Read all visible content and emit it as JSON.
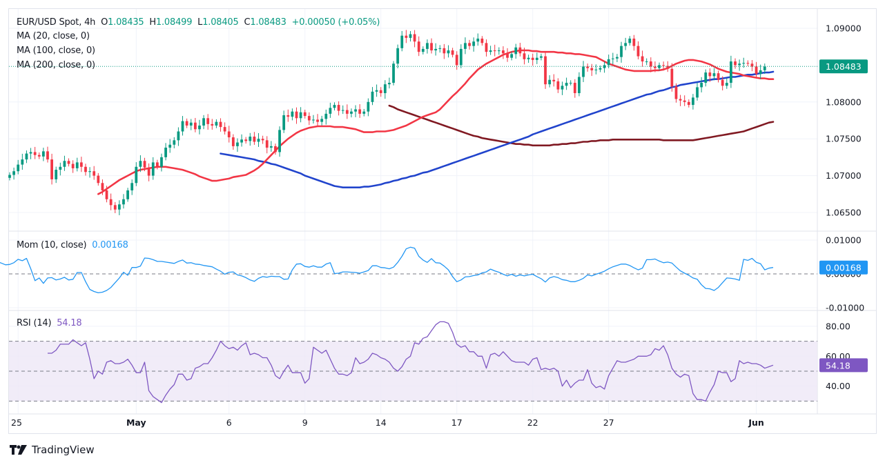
{
  "header": {
    "symbol": "EUR/USD Spot, 4h",
    "open_label": "O",
    "open": "1.08435",
    "high_label": "H",
    "high": "1.08499",
    "low_label": "L",
    "low": "1.08405",
    "close_label": "C",
    "close": "1.08483",
    "change": "+0.00050 (+0.05%)"
  },
  "indicators": {
    "ma20": "MA (20, close, 0)",
    "ma100": "MA (100, close, 0)",
    "ma200": "MA (200, close, 0)",
    "mom_label": "Mom (10, close)",
    "mom_value": "0.00168",
    "rsi_label": "RSI (14)",
    "rsi_value": "54.18"
  },
  "colors": {
    "up": "#089981",
    "down": "#f23645",
    "ma20": "#f23645",
    "ma100": "#2144cc",
    "ma200": "#801922",
    "mom": "#2196f3",
    "rsi": "#7e57c2",
    "rsi_band": "#ede7f6",
    "price_badge": "#089981"
  },
  "branding": {
    "name": "TradingView"
  },
  "chart_data": [
    {
      "type": "candlestick",
      "title": "EUR/USD Spot, 4h",
      "ylim": [
        1.0635,
        1.0915
      ],
      "yticks": [
        "1.09000",
        "1.08000",
        "1.07500",
        "1.07000",
        "1.06500"
      ],
      "ytick_values": [
        1.09,
        1.08,
        1.075,
        1.07,
        1.065
      ],
      "last_price_label": "1.08483",
      "last_price": 1.08483,
      "xticks": [
        {
          "label": "25",
          "index": 2,
          "bold": false
        },
        {
          "label": "May",
          "index": 30,
          "bold": true
        },
        {
          "label": "6",
          "index": 52,
          "bold": false
        },
        {
          "label": "9",
          "index": 70,
          "bold": false
        },
        {
          "label": "14",
          "index": 88,
          "bold": false
        },
        {
          "label": "17",
          "index": 106,
          "bold": false
        },
        {
          "label": "22",
          "index": 124,
          "bold": false
        },
        {
          "label": "27",
          "index": 142,
          "bold": false
        },
        {
          "label": "Jun",
          "index": 177,
          "bold": true
        }
      ],
      "n": 182,
      "closes": [
        1.0701,
        1.0706,
        1.0715,
        1.0722,
        1.073,
        1.0732,
        1.0728,
        1.0726,
        1.0733,
        1.0722,
        1.0695,
        1.0708,
        1.0712,
        1.072,
        1.0716,
        1.071,
        1.0718,
        1.0712,
        1.0705,
        1.0706,
        1.07,
        1.069,
        1.068,
        1.0668,
        1.066,
        1.0654,
        1.0661,
        1.0668,
        1.068,
        1.069,
        1.0712,
        1.072,
        1.0711,
        1.07,
        1.0718,
        1.0712,
        1.0725,
        1.0738,
        1.0742,
        1.0748,
        1.076,
        1.0774,
        1.0768,
        1.0772,
        1.0763,
        1.0768,
        1.0778,
        1.077,
        1.0768,
        1.0773,
        1.0766,
        1.076,
        1.0752,
        1.074,
        1.0745,
        1.0749,
        1.0747,
        1.0753,
        1.0746,
        1.075,
        1.0748,
        1.0738,
        1.074,
        1.0732,
        1.0762,
        1.0782,
        1.078,
        1.0787,
        1.0778,
        1.0786,
        1.0781,
        1.0775,
        1.0776,
        1.0773,
        1.0777,
        1.0784,
        1.0792,
        1.0796,
        1.0788,
        1.0789,
        1.0784,
        1.0787,
        1.079,
        1.0784,
        1.0787,
        1.08,
        1.0814,
        1.0816,
        1.0812,
        1.0824,
        1.0826,
        1.0852,
        1.0873,
        1.089,
        1.0887,
        1.0892,
        1.0882,
        1.0868,
        1.0872,
        1.088,
        1.087,
        1.0872,
        1.0873,
        1.0866,
        1.087,
        1.0864,
        1.085,
        1.0872,
        1.088,
        1.0876,
        1.0882,
        1.0886,
        1.088,
        1.0868,
        1.087,
        1.0869,
        1.087,
        1.0866,
        1.086,
        1.0865,
        1.0874,
        1.0866,
        1.0858,
        1.086,
        1.0857,
        1.086,
        1.0862,
        1.0824,
        1.083,
        1.0828,
        1.0817,
        1.0822,
        1.0826,
        1.0826,
        1.0812,
        1.0834,
        1.0848,
        1.0846,
        1.0843,
        1.0844,
        1.0846,
        1.085,
        1.0858,
        1.0859,
        1.0861,
        1.0876,
        1.088,
        1.0886,
        1.0876,
        1.0862,
        1.0855,
        1.0855,
        1.0848,
        1.0846,
        1.085,
        1.0849,
        1.0845,
        1.0821,
        1.0804,
        1.0802,
        1.08,
        1.0796,
        1.0806,
        1.082,
        1.0826,
        1.084,
        1.0835,
        1.0839,
        1.083,
        1.0822,
        1.0826,
        1.0855,
        1.085,
        1.0852,
        1.0853,
        1.0852,
        1.0848,
        1.0838,
        1.0843,
        1.0848
      ],
      "series": [
        {
          "name": "MA (20, close, 0)",
          "color": "#f23645",
          "values": [
            1.0675,
            1.0678,
            1.0682,
            1.0686,
            1.069,
            1.0694,
            1.0697,
            1.07,
            1.0703,
            1.0706,
            1.0708,
            1.0709,
            1.071,
            1.0711,
            1.0712,
            1.0712,
            1.0712,
            1.0711,
            1.071,
            1.0709,
            1.0708,
            1.0706,
            1.0704,
            1.0702,
            1.0699,
            1.0697,
            1.0695,
            1.0693,
            1.0693,
            1.0694,
            1.0695,
            1.0696,
            1.0698,
            1.0699,
            1.07,
            1.0701,
            1.0704,
            1.0707,
            1.0711,
            1.0716,
            1.0722,
            1.0728,
            1.0734,
            1.074,
            1.0745,
            1.075,
            1.0754,
            1.0758,
            1.0761,
            1.0763,
            1.0765,
            1.0766,
            1.0767,
            1.0767,
            1.0767,
            1.0767,
            1.0766,
            1.0766,
            1.0766,
            1.0765,
            1.0764,
            1.0763,
            1.0761,
            1.0759,
            1.0759,
            1.0759,
            1.076,
            1.076,
            1.076,
            1.0761,
            1.0762,
            1.0764,
            1.0766,
            1.0768,
            1.0771,
            1.0774,
            1.0777,
            1.078,
            1.0782,
            1.0784,
            1.0786,
            1.079,
            1.0796,
            1.0802,
            1.0808,
            1.0813,
            1.0819,
            1.0825,
            1.0832,
            1.0838,
            1.0844,
            1.0848,
            1.0852,
            1.0855,
            1.0858,
            1.0861,
            1.0864,
            1.0866,
            1.0868,
            1.0869,
            1.087,
            1.087,
            1.087,
            1.0869,
            1.0869,
            1.0868,
            1.0868,
            1.0868,
            1.0868,
            1.0867,
            1.0867,
            1.0866,
            1.0866,
            1.0865,
            1.0865,
            1.0864,
            1.0863,
            1.0862,
            1.0861,
            1.0858,
            1.0855,
            1.0852,
            1.085,
            1.0848,
            1.0846,
            1.0844,
            1.0843,
            1.0842,
            1.0842,
            1.0842,
            1.0842,
            1.0842,
            1.0843,
            1.0843,
            1.0844,
            1.0846,
            1.0849,
            1.0852,
            1.0854,
            1.0856,
            1.0857,
            1.0857,
            1.0856,
            1.0855,
            1.0853,
            1.0851,
            1.0848,
            1.0845,
            1.0843,
            1.0841,
            1.084,
            1.0839,
            1.0838,
            1.0836,
            1.0835,
            1.0834,
            1.0833,
            1.0832,
            1.0832,
            1.0831,
            1.0831
          ]
        },
        {
          "name": "MA (100, close, 0)",
          "color": "#2144cc",
          "values": [
            1.073,
            1.0729,
            1.0728,
            1.0727,
            1.0726,
            1.0725,
            1.0724,
            1.0723,
            1.0722,
            1.072,
            1.0719,
            1.0718,
            1.0716,
            1.0715,
            1.0713,
            1.0711,
            1.0709,
            1.0707,
            1.0705,
            1.0703,
            1.07,
            1.0698,
            1.0696,
            1.0694,
            1.0692,
            1.069,
            1.0688,
            1.0686,
            1.0685,
            1.0684,
            1.0684,
            1.0684,
            1.0684,
            1.0684,
            1.0685,
            1.0685,
            1.0686,
            1.0687,
            1.0688,
            1.069,
            1.0691,
            1.0693,
            1.0694,
            1.0696,
            1.0697,
            1.0699,
            1.07,
            1.0702,
            1.0704,
            1.0705,
            1.0707,
            1.0709,
            1.0711,
            1.0713,
            1.0715,
            1.0717,
            1.0719,
            1.0721,
            1.0723,
            1.0725,
            1.0727,
            1.0729,
            1.0731,
            1.0733,
            1.0735,
            1.0737,
            1.0739,
            1.0741,
            1.0743,
            1.0745,
            1.0747,
            1.0749,
            1.0751,
            1.0753,
            1.0756,
            1.0758,
            1.076,
            1.0762,
            1.0764,
            1.0766,
            1.0768,
            1.077,
            1.0772,
            1.0774,
            1.0776,
            1.0778,
            1.078,
            1.0782,
            1.0784,
            1.0786,
            1.0788,
            1.079,
            1.0792,
            1.0794,
            1.0796,
            1.0798,
            1.08,
            1.0802,
            1.0804,
            1.0806,
            1.0808,
            1.081,
            1.0811,
            1.0813,
            1.0815,
            1.0816,
            1.0818,
            1.082,
            1.0821,
            1.0823,
            1.0824,
            1.0825,
            1.0826,
            1.0827,
            1.0828,
            1.0829,
            1.083,
            1.0831,
            1.0831,
            1.0832,
            1.0833,
            1.0834,
            1.0834,
            1.0835,
            1.0836,
            1.0837,
            1.0837,
            1.0838,
            1.0839,
            1.084,
            1.084,
            1.0841
          ]
        },
        {
          "name": "MA (200, close, 0)",
          "color": "#801922",
          "values": [
            1.0795,
            1.0793,
            1.079,
            1.0788,
            1.0786,
            1.0784,
            1.0782,
            1.078,
            1.0778,
            1.0776,
            1.0774,
            1.0772,
            1.077,
            1.0768,
            1.0766,
            1.0764,
            1.0762,
            1.076,
            1.0758,
            1.0756,
            1.0754,
            1.0753,
            1.0751,
            1.075,
            1.0749,
            1.0748,
            1.0747,
            1.0746,
            1.0745,
            1.0744,
            1.0743,
            1.0743,
            1.0742,
            1.0742,
            1.0741,
            1.0741,
            1.0741,
            1.0741,
            1.0741,
            1.0742,
            1.0742,
            1.0743,
            1.0743,
            1.0744,
            1.0744,
            1.0745,
            1.0746,
            1.0746,
            1.0747,
            1.0747,
            1.0748,
            1.0748,
            1.0748,
            1.0749,
            1.0749,
            1.0749,
            1.0749,
            1.0749,
            1.0749,
            1.0749,
            1.0749,
            1.0749,
            1.0749,
            1.0749,
            1.0749,
            1.0748,
            1.0748,
            1.0748,
            1.0748,
            1.0748,
            1.0748,
            1.0748,
            1.0748,
            1.0749,
            1.075,
            1.0751,
            1.0752,
            1.0753,
            1.0754,
            1.0755,
            1.0756,
            1.0757,
            1.0758,
            1.0759,
            1.076,
            1.0762,
            1.0764,
            1.0766,
            1.0768,
            1.077,
            1.0772,
            1.0773
          ]
        }
      ]
    },
    {
      "type": "line",
      "title": "Mom (10, close)",
      "ylim": [
        -0.012,
        0.011
      ],
      "yticks": [
        "0.01000",
        "0.00000",
        "-0.01000"
      ],
      "ytick_values": [
        0.01,
        0.0,
        -0.01
      ],
      "last_value_label": "0.00168",
      "zero_line": true,
      "values": [
        0.0045,
        0.003,
        0.0036,
        0.0032,
        0.0027,
        0.0028,
        0.0033,
        0.0043,
        0.0039,
        0.0046,
        0.0015,
        -0.002,
        -0.0012,
        -0.0028,
        -0.0012,
        -0.0011,
        -0.0018,
        -0.0015,
        -0.001,
        -0.0018,
        -0.0016,
        0.0004,
        0.0004,
        -0.0023,
        -0.0046,
        -0.0052,
        -0.0056,
        -0.0054,
        -0.0049,
        -0.004,
        -0.0026,
        -0.0012,
        0.0005,
        -0.0004,
        0.0019,
        0.0019,
        0.0023,
        0.0047,
        0.0046,
        0.0042,
        0.0037,
        0.0037,
        0.0035,
        0.0033,
        0.0031,
        0.0037,
        0.0041,
        0.0032,
        0.0033,
        0.0029,
        0.0028,
        0.0025,
        0.0023,
        0.0021,
        0.0014,
        0.0008,
        -0.0001,
        0.0005,
        0.0006,
        -0.0003,
        -0.0006,
        -0.0011,
        -0.0018,
        -0.0022,
        -0.0013,
        -0.0008,
        -0.001,
        -0.0007,
        -0.0008,
        -0.0008,
        -0.0016,
        -0.0015,
        0.0012,
        0.0029,
        0.003,
        0.0022,
        0.002,
        0.0024,
        0.002,
        0.002,
        0.0029,
        0.0033,
        0.0001,
        0.0002,
        0.0006,
        0.0006,
        0.0005,
        0.0004,
        0.0002,
        0.0006,
        0.001,
        0.0024,
        0.0024,
        0.0019,
        0.0018,
        0.0015,
        0.002,
        0.0034,
        0.0052,
        0.0074,
        0.0079,
        0.0076,
        0.0052,
        0.0041,
        0.0034,
        0.0045,
        0.0033,
        0.0032,
        0.0023,
        0.0012,
        -0.0008,
        -0.0023,
        -0.0018,
        -0.0009,
        -0.0008,
        -0.0005,
        -0.0003,
        0.0003,
        0.0006,
        0.0014,
        0.0009,
        0.0005,
        -0.0001,
        -0.0006,
        -0.0001,
        -0.0007,
        -0.0003,
        -0.0006,
        -0.0003,
        -0.0001,
        -0.0008,
        -0.0014,
        -0.0024,
        -0.0012,
        -0.0008,
        -0.0011,
        -0.0017,
        -0.0019,
        -0.0023,
        -0.0023,
        -0.0019,
        -0.0013,
        -0.0003,
        -0.0006,
        -0.0001,
        0.0003,
        0.0008,
        0.0015,
        0.0021,
        0.0025,
        0.0029,
        0.0029,
        0.0025,
        0.0018,
        0.0012,
        0.0017,
        0.0042,
        0.0042,
        0.0044,
        0.0038,
        0.0033,
        0.0035,
        0.0032,
        0.002,
        0.0009,
        0.0002,
        -0.0004,
        -0.0012,
        -0.0016,
        -0.0032,
        -0.0043,
        -0.0044,
        -0.0049,
        -0.004,
        -0.0026,
        -0.0012,
        -0.0013,
        -0.0015,
        -0.0019,
        0.0043,
        0.004,
        0.0046,
        0.0034,
        0.003,
        0.0012,
        0.0017,
        0.0019
      ]
    },
    {
      "type": "line",
      "title": "RSI (14)",
      "ylim": [
        20,
        93
      ],
      "yticks": [
        "80.00",
        "60.00",
        "40.00"
      ],
      "ytick_values": [
        80,
        60,
        40
      ],
      "band": [
        30,
        70
      ],
      "dashed_levels": [
        70,
        50,
        30
      ],
      "last_value_label": "54.18",
      "values": [
        62,
        62,
        64,
        68,
        68,
        68,
        71,
        69,
        67,
        69,
        58,
        45,
        50,
        48,
        56,
        57,
        55,
        55,
        56,
        58,
        54,
        49,
        49,
        56,
        37,
        33,
        31,
        29,
        34,
        38,
        41,
        48,
        48,
        44,
        45,
        52,
        53,
        55,
        55,
        59,
        64,
        70,
        67,
        65,
        66,
        64,
        67,
        69,
        61,
        62,
        61,
        59,
        59,
        54,
        47,
        45,
        50,
        54,
        49,
        49,
        49,
        42,
        45,
        66,
        64,
        62,
        64,
        58,
        52,
        48,
        48,
        47,
        49,
        59,
        55,
        56,
        58,
        62,
        61,
        59,
        58,
        56,
        52,
        50,
        53,
        58,
        60,
        69,
        68,
        72,
        73,
        77,
        81,
        83,
        83,
        82,
        76,
        68,
        66,
        67,
        63,
        63,
        60,
        60,
        52,
        61,
        62,
        60,
        63,
        60,
        57,
        56,
        56,
        56,
        54,
        58,
        59,
        51,
        52,
        51,
        52,
        50,
        40,
        44,
        39,
        42,
        44,
        44,
        51,
        42,
        39,
        40,
        38,
        47,
        52,
        57,
        56,
        56,
        57,
        58,
        60,
        60,
        60,
        61,
        65,
        64,
        67,
        61,
        52,
        48,
        46,
        48,
        47,
        35,
        31,
        31,
        30,
        36,
        41,
        50,
        49,
        49,
        43,
        45,
        57,
        55,
        56,
        55,
        55,
        54,
        52,
        53,
        54
      ]
    }
  ]
}
